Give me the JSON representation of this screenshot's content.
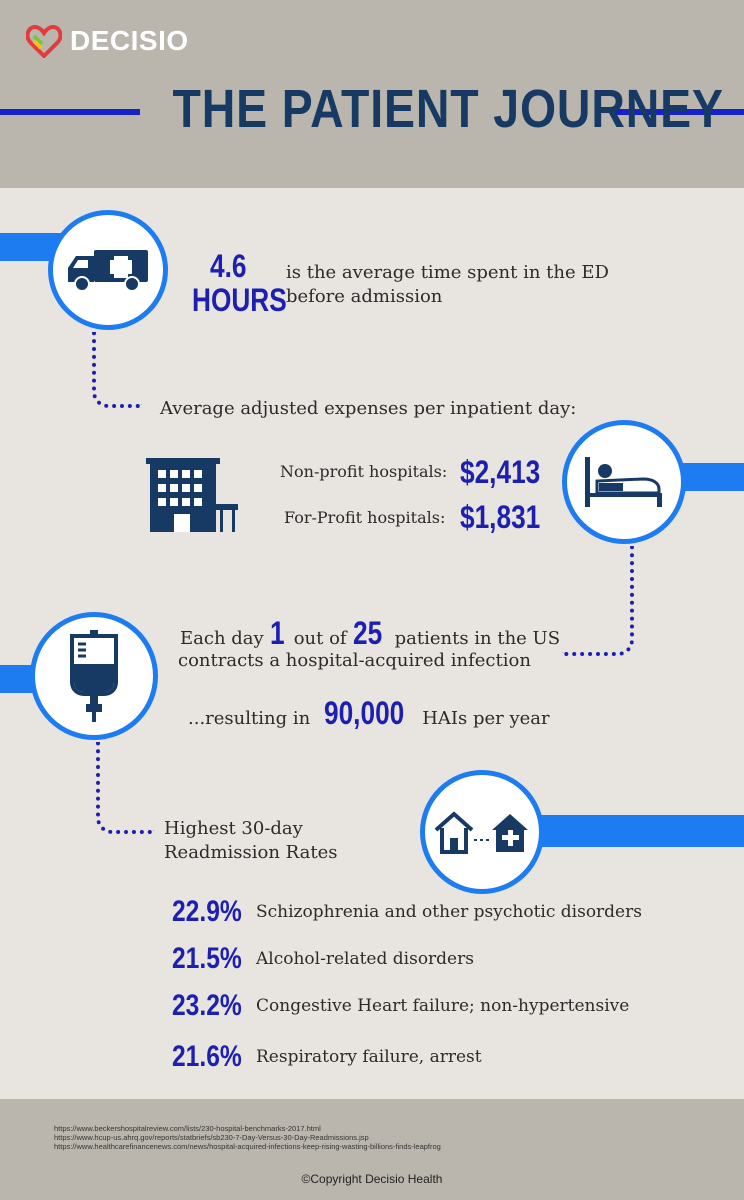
{
  "brand": {
    "name": "DECISIO"
  },
  "header": {
    "title": "THE PATIENT JOURNEY"
  },
  "ed": {
    "number": "4.6",
    "unit": "HOURS",
    "text_line1": "is the average time spent in the ED",
    "text_line2": "before admission",
    "icon": "ambulance-icon"
  },
  "expenses": {
    "heading": "Average adjusted expenses per inpatient day:",
    "rows": [
      {
        "label": "Non-profit hospitals:",
        "value": "$2,413"
      },
      {
        "label": "For-Profit hospitals:",
        "value": "$1,831"
      }
    ],
    "icons": [
      "hospital-building-icon",
      "hospital-bed-icon"
    ]
  },
  "infection": {
    "line1_pre": "Each day",
    "n1": "1",
    "line1_mid": "out of",
    "n2": "25",
    "line1_post": "patients in the US",
    "line2": "contracts a hospital-acquired infection",
    "result_pre": "...resulting in",
    "result_num": "90,000",
    "result_post": "HAIs per year",
    "icon": "iv-bag-icon"
  },
  "readmission": {
    "heading_line1": "Highest 30-day",
    "heading_line2": "Readmission Rates",
    "icon": "house-to-hospital-icon",
    "rows": [
      {
        "rate": "22.9%",
        "label": "Schizophrenia and other psychotic disorders"
      },
      {
        "rate": "21.5%",
        "label": "Alcohol-related disorders"
      },
      {
        "rate": "23.2%",
        "label": "Congestive Heart failure; non-hypertensive"
      },
      {
        "rate": "21.6%",
        "label": "Respiratory failure, arrest"
      }
    ]
  },
  "footer": {
    "sources": [
      "https://www.beckershospitalreview.com/lists/230-hospital-benchmarks-2017.html",
      "https://www.hcup-us.ahrq.gov/reports/statbriefs/sb230-7-Day-Versus-30-Day-Readmissions.jsp",
      "https://www.healthcarefinancenews.com/news/hospital-acquired-infections-keep-rising-wasting-billions-finds-leapfrog"
    ],
    "copyright": "©Copyright Decisio Health"
  },
  "colors": {
    "accent": "#1e7cf3",
    "number": "#1d1fb0",
    "title": "#163a63",
    "header_bg": "#bab6ad",
    "page_bg": "#e8e4df"
  }
}
